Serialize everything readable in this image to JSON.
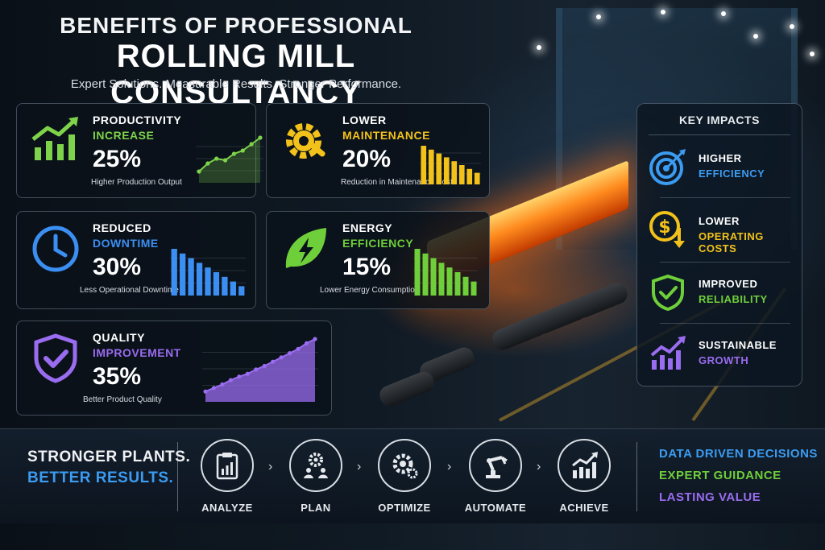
{
  "header": {
    "title_line1": "BENEFITS OF PROFESSIONAL",
    "title_line2": "ROLLING MILL CONSULTANCY",
    "subtitle": "Expert Solutions. Measurable Results. Stronger Performance."
  },
  "cards": {
    "productivity": {
      "label1": "PRODUCTIVITY",
      "label2": "INCREASE",
      "value": "25%",
      "description": "Higher Production Output",
      "color": "#7ed34a",
      "icon": "growth-chart-icon"
    },
    "maintenance": {
      "label1": "LOWER",
      "label2": "MAINTENANCE",
      "value": "20%",
      "description": "Reduction in Maintenance Cost",
      "color": "#f2c21b",
      "icon": "gear-wrench-icon"
    },
    "downtime": {
      "label1": "REDUCED",
      "label2": "DOWNTIME",
      "value": "30%",
      "description": "Less Operational Downtime",
      "color": "#3b8ff2",
      "icon": "clock-icon"
    },
    "energy": {
      "label1": "ENERGY",
      "label2": "EFFICIENCY",
      "value": "15%",
      "description": "Lower Energy Consumption",
      "color": "#6fcf3a",
      "icon": "leaf-bolt-icon"
    },
    "quality": {
      "label1": "QUALITY",
      "label2": "IMPROVEMENT",
      "value": "35%",
      "description": "Better Product Quality",
      "color": "#9a6cf0",
      "icon": "shield-check-icon"
    }
  },
  "chart_data": [
    {
      "type": "line",
      "series": [
        {
          "values": [
            1,
            2,
            2.6,
            2.4,
            3.2,
            3.6,
            4.4,
            5.2
          ]
        }
      ]
    },
    {
      "type": "bar",
      "series": [
        {
          "values": [
            10,
            9,
            8,
            7,
            6,
            5,
            4,
            3
          ]
        }
      ]
    },
    {
      "type": "bar",
      "series": [
        {
          "values": [
            10,
            9,
            8,
            7,
            6,
            5,
            4,
            3,
            2
          ]
        }
      ]
    },
    {
      "type": "bar",
      "series": [
        {
          "values": [
            10,
            9,
            8,
            7,
            6,
            5,
            4,
            3
          ]
        }
      ]
    },
    {
      "type": "line",
      "series": [
        {
          "values": [
            1,
            1.5,
            2,
            2.6,
            3.1,
            3.5,
            4.1,
            4.6,
            5.2,
            5.8,
            6.4,
            7.0,
            7.8,
            8.4
          ]
        }
      ]
    }
  ],
  "key_impacts": {
    "title": "KEY IMPACTS",
    "items": [
      {
        "line1": "HIGHER",
        "line2": "EFFICIENCY",
        "color": "#3b9cf2",
        "icon": "target-icon"
      },
      {
        "line1": "LOWER",
        "line2": "OPERATING COSTS",
        "color": "#f2c21b",
        "icon": "dollar-down-icon"
      },
      {
        "line1": "IMPROVED",
        "line2": "RELIABILITY",
        "color": "#6fcf3a",
        "icon": "shield-check-icon"
      },
      {
        "line1": "SUSTAINABLE",
        "line2": "GROWTH",
        "color": "#9a6cf0",
        "icon": "growth-chart-icon"
      }
    ]
  },
  "footer": {
    "slogan_line1": "STRONGER PLANTS.",
    "slogan_line2": "BETTER RESULTS.",
    "steps": [
      {
        "label": "ANALYZE",
        "icon": "clipboard-chart-icon"
      },
      {
        "label": "PLAN",
        "icon": "gear-people-icon"
      },
      {
        "label": "OPTIMIZE",
        "icon": "gears-icon"
      },
      {
        "label": "AUTOMATE",
        "icon": "robot-arm-icon"
      },
      {
        "label": "ACHIEVE",
        "icon": "growth-chart-icon"
      }
    ],
    "chevron": "›",
    "values": [
      {
        "text": "DATA DRIVEN DECISIONS",
        "color": "#3b9cf2"
      },
      {
        "text": "EXPERT GUIDANCE",
        "color": "#6fcf3a"
      },
      {
        "text": "LASTING VALUE",
        "color": "#9a6cf0"
      }
    ]
  }
}
